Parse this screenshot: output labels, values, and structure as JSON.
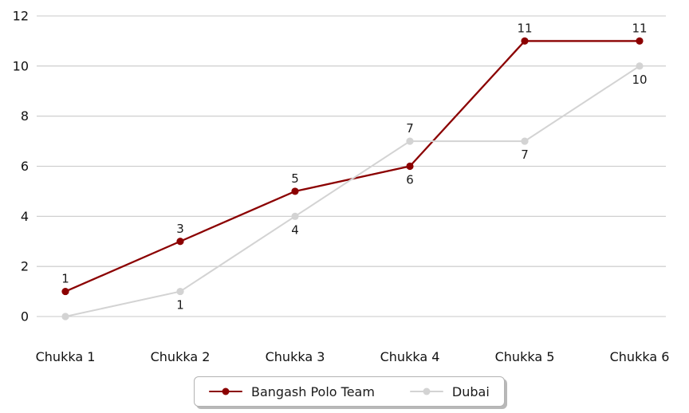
{
  "chart_data": {
    "type": "line",
    "title": "",
    "xlabel": "",
    "ylabel": "",
    "categories": [
      "Chukka 1",
      "Chukka 2",
      "Chukka 3",
      "Chukka 4",
      "Chukka 5",
      "Chukka 6"
    ],
    "series": [
      {
        "name": "Bangash Polo Team",
        "color": "#8b0000",
        "values": [
          1,
          3,
          5,
          6,
          11,
          11
        ],
        "point_labels": [
          "1",
          "3",
          "5",
          "6",
          "11",
          "11"
        ],
        "label_positions": [
          "above",
          "above",
          "above",
          "below",
          "above",
          "above"
        ]
      },
      {
        "name": "Dubai",
        "color": "#d3d3d3",
        "values": [
          0,
          1,
          4,
          7,
          7,
          10
        ],
        "point_labels": [
          "",
          "1",
          "4",
          "7",
          "7",
          "10"
        ],
        "label_positions": [
          "below",
          "below",
          "below",
          "above",
          "below",
          "below"
        ]
      }
    ],
    "ylim": [
      0,
      12
    ],
    "ytick_step": 2,
    "yticks": [
      "0",
      "2",
      "4",
      "6",
      "8",
      "10",
      "12"
    ],
    "grid": "horizontal-only",
    "grid_color": "#c9c9c9",
    "tick_label_color": "#111111",
    "point_label_color": "#1a1a1a",
    "legend": {
      "position": "bottom-center",
      "border_color": "#b3b3b3",
      "background": "#ffffff"
    }
  }
}
